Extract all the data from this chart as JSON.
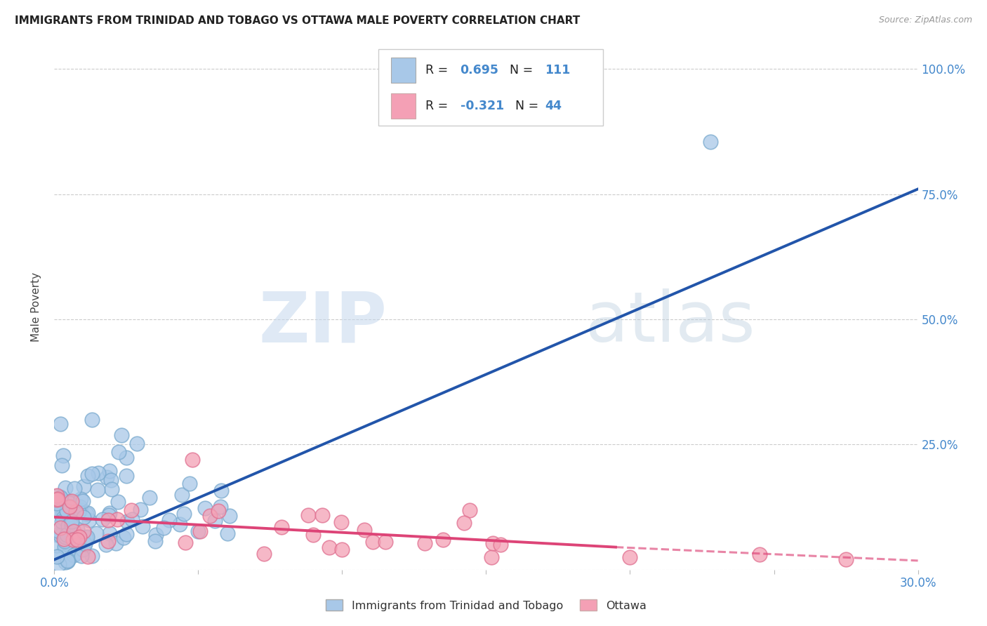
{
  "title": "IMMIGRANTS FROM TRINIDAD AND TOBAGO VS OTTAWA MALE POVERTY CORRELATION CHART",
  "source": "Source: ZipAtlas.com",
  "ylabel": "Male Poverty",
  "blue_R": 0.695,
  "blue_N": 111,
  "pink_R": -0.321,
  "pink_N": 44,
  "blue_color": "#A8C8E8",
  "pink_color": "#F4A0B5",
  "blue_edge_color": "#7AAACE",
  "pink_edge_color": "#E07090",
  "blue_line_color": "#2255AA",
  "pink_line_color": "#DD4477",
  "legend_label_blue": "Immigrants from Trinidad and Tobago",
  "legend_label_pink": "Ottawa",
  "watermark_zip": "ZIP",
  "watermark_atlas": "atlas",
  "background_color": "#FFFFFF",
  "title_fontsize": 11,
  "axis_color": "#4488CC",
  "grid_color": "#CCCCCC",
  "y_ticks": [
    0.0,
    0.25,
    0.5,
    0.75,
    1.0
  ],
  "y_tick_labels": [
    "",
    "25.0%",
    "50.0%",
    "75.0%",
    "100.0%"
  ],
  "xlim": [
    0.0,
    0.3
  ],
  "ylim": [
    0.0,
    1.05
  ]
}
